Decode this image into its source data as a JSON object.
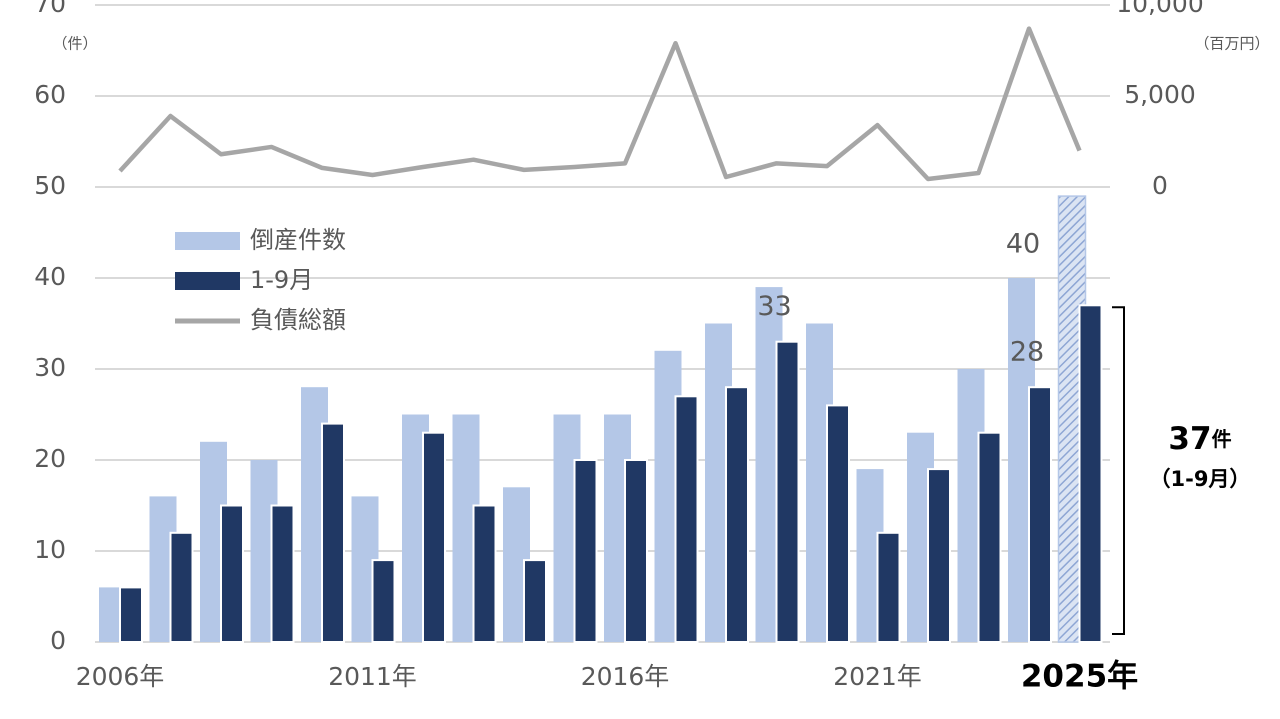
{
  "chart_data": {
    "type": "bar",
    "categories": [
      "2006年",
      null,
      null,
      null,
      null,
      "2011年",
      null,
      null,
      null,
      null,
      "2016年",
      null,
      null,
      null,
      null,
      "2021年",
      null,
      null,
      null,
      "2025年"
    ],
    "series": [
      {
        "name": "倒産件数",
        "type": "bar",
        "color": "#b4c7e7",
        "values": [
          6,
          16,
          22,
          20,
          28,
          16,
          25,
          25,
          17,
          25,
          25,
          32,
          35,
          39,
          35,
          19,
          23,
          30,
          40,
          49
        ],
        "labeled": [
          18
        ],
        "hatched": [
          19
        ]
      },
      {
        "name": "1-9月",
        "type": "bar",
        "color": "#203864",
        "values": [
          6,
          12,
          15,
          15,
          24,
          9,
          23,
          15,
          9,
          20,
          20,
          27,
          28,
          33,
          26,
          12,
          19,
          23,
          28,
          37
        ],
        "labeled": [
          13,
          18
        ]
      },
      {
        "name": "負債総額",
        "type": "line",
        "axis": "y2",
        "color": "#a6a6a6",
        "values": [
          880,
          3900,
          1800,
          2200,
          1050,
          660,
          1100,
          1500,
          940,
          1100,
          1300,
          7900,
          550,
          1300,
          1150,
          3400,
          440,
          770,
          8700,
          2000
        ]
      }
    ],
    "ylim": [
      0,
      70
    ],
    "yticks": [
      0,
      10,
      20,
      30,
      40,
      50,
      60,
      70
    ],
    "y_unit": "（件）",
    "y2lim": [
      -25000,
      10000
    ],
    "y2ticks": [
      0,
      {
        "value": 5000,
        "label": "5,000"
      },
      {
        "value": 10000,
        "label": "10,000"
      }
    ],
    "y2_unit": "（百万円）",
    "grid": true,
    "annotation": {
      "unit": "件",
      "note": "（1-9月）"
    }
  }
}
